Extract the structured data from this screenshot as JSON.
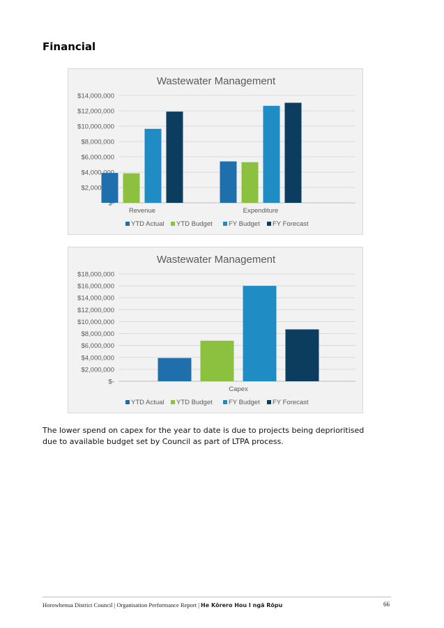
{
  "page": {
    "heading": "Financial",
    "body_text": "The lower spend on capex for the year to date is due to projects being deprioritised due to available budget set by Council as part of LTPA process.",
    "footer": {
      "org": "Horowhenua District Council | Organisation Performance Report | ",
      "report_title": "He Kōrero Hou I ngā Rōpu",
      "page_number": "66"
    }
  },
  "colors": {
    "ytd_actual": "#1f6fad",
    "ytd_budget": "#8cc03f",
    "fy_budget": "#1f8cc3",
    "fy_forecast": "#0c3d5f"
  },
  "chart_data": [
    {
      "type": "bar",
      "title": "Wastewater Management",
      "categories": [
        "Revenue",
        "Expenditure"
      ],
      "series": [
        {
          "name": "YTD Actual",
          "color": "#1f6fad",
          "values": [
            3900000,
            5400000
          ]
        },
        {
          "name": "YTD Budget",
          "color": "#8cc03f",
          "values": [
            3850000,
            5300000
          ]
        },
        {
          "name": "FY Budget",
          "color": "#1f8cc3",
          "values": [
            9650000,
            12650000
          ]
        },
        {
          "name": "FY Forecast",
          "color": "#0c3d5f",
          "values": [
            11900000,
            13050000
          ]
        }
      ],
      "ylim": [
        0,
        14000000
      ],
      "yticks": [
        0,
        2000000,
        4000000,
        6000000,
        8000000,
        10000000,
        12000000,
        14000000
      ],
      "ytick_labels": [
        "$-",
        "$2,000,000",
        "$4,000,000",
        "$6,000,000",
        "$8,000,000",
        "$10,000,000",
        "$12,000,000",
        "$14,000,000"
      ],
      "grid": true,
      "legend": "bottom"
    },
    {
      "type": "bar",
      "title": "Wastewater Management",
      "categories": [
        "Capex"
      ],
      "series": [
        {
          "name": "YTD Actual",
          "color": "#1f6fad",
          "values": [
            3900000
          ]
        },
        {
          "name": "YTD Budget",
          "color": "#8cc03f",
          "values": [
            6800000
          ]
        },
        {
          "name": "FY Budget",
          "color": "#1f8cc3",
          "values": [
            16000000
          ]
        },
        {
          "name": "FY Forecast",
          "color": "#0c3d5f",
          "values": [
            8700000
          ]
        }
      ],
      "ylim": [
        0,
        18000000
      ],
      "yticks": [
        0,
        2000000,
        4000000,
        6000000,
        8000000,
        10000000,
        12000000,
        14000000,
        16000000,
        18000000
      ],
      "ytick_labels": [
        "$-",
        "$2,000,000",
        "$4,000,000",
        "$6,000,000",
        "$8,000,000",
        "$10,000,000",
        "$12,000,000",
        "$14,000,000",
        "$16,000,000",
        "$18,000,000"
      ],
      "grid": true,
      "legend": "bottom"
    }
  ]
}
